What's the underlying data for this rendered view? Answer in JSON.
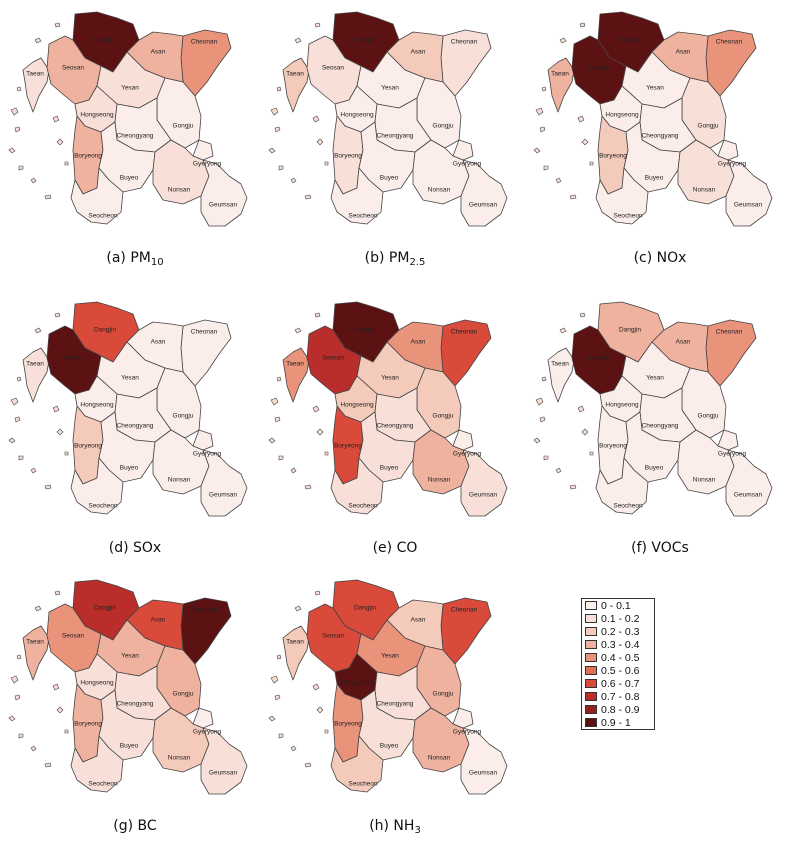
{
  "legend": {
    "bins": [
      {
        "label": "0 - 0.1",
        "color": "#fbeeea"
      },
      {
        "label": "0.1 - 0.2",
        "color": "#f8e0d8"
      },
      {
        "label": "0.2 - 0.3",
        "color": "#f4cabb"
      },
      {
        "label": "0.3 - 0.4",
        "color": "#efb29f"
      },
      {
        "label": "0.4 - 0.5",
        "color": "#e9937b"
      },
      {
        "label": "0.5 - 0.6",
        "color": "#e36e56"
      },
      {
        "label": "0.6 - 0.7",
        "color": "#d94a3a"
      },
      {
        "label": "0.7 - 0.8",
        "color": "#b92d2a"
      },
      {
        "label": "0.8 - 0.9",
        "color": "#92211f"
      },
      {
        "label": "0.9 - 1",
        "color": "#5c1113"
      }
    ]
  },
  "region_labels": {
    "Dangjin": "Dangjin",
    "Cheonan": "Cheonan",
    "Taean": "Taean",
    "Seosan": "Seosan",
    "Asan": "Asan",
    "Yesan": "Yesan",
    "Hongseong": "Hongseong",
    "Gongju": "Gongju",
    "Cheongyang": "Cheongyang",
    "Boryeong": "Boryeong",
    "Gyeryong": "Gyeryong",
    "Buyeo": "Buyeo",
    "Nonsan": "Nonsan",
    "Seocheon": "Seocheon",
    "Geumsan": "Geumsan"
  },
  "panels": [
    {
      "id": "a",
      "caption_prefix": "(a) PM",
      "caption_sub": "10",
      "values": {
        "Dangjin": 0.95,
        "Cheonan": 0.45,
        "Taean": 0.15,
        "Seosan": 0.35,
        "Asan": 0.35,
        "Yesan": 0.15,
        "Hongseong": 0.15,
        "Gongju": 0.05,
        "Cheongyang": 0.05,
        "Boryeong": 0.35,
        "Gyeryong": 0.05,
        "Buyeo": 0.05,
        "Nonsan": 0.15,
        "Seocheon": 0.05,
        "Geumsan": 0.05
      }
    },
    {
      "id": "b",
      "caption_prefix": "(b) PM",
      "caption_sub": "2.5",
      "values": {
        "Dangjin": 0.95,
        "Cheonan": 0.15,
        "Taean": 0.25,
        "Seosan": 0.15,
        "Asan": 0.25,
        "Yesan": 0.05,
        "Hongseong": 0.05,
        "Gongju": 0.05,
        "Cheongyang": 0.05,
        "Boryeong": 0.15,
        "Gyeryong": 0.05,
        "Buyeo": 0.05,
        "Nonsan": 0.05,
        "Seocheon": 0.05,
        "Geumsan": 0.05
      }
    },
    {
      "id": "c",
      "caption_prefix": "(c) NOx",
      "caption_sub": "",
      "values": {
        "Dangjin": 0.95,
        "Cheonan": 0.45,
        "Taean": 0.35,
        "Seosan": 0.95,
        "Asan": 0.35,
        "Yesan": 0.05,
        "Hongseong": 0.05,
        "Gongju": 0.15,
        "Cheongyang": 0.05,
        "Boryeong": 0.25,
        "Gyeryong": 0.05,
        "Buyeo": 0.05,
        "Nonsan": 0.15,
        "Seocheon": 0.05,
        "Geumsan": 0.05
      }
    },
    {
      "id": "d",
      "caption_prefix": "(d) SOx",
      "caption_sub": "",
      "values": {
        "Dangjin": 0.65,
        "Cheonan": 0.05,
        "Taean": 0.15,
        "Seosan": 0.95,
        "Asan": 0.05,
        "Yesan": 0.05,
        "Hongseong": 0.05,
        "Gongju": 0.05,
        "Cheongyang": 0.05,
        "Boryeong": 0.25,
        "Gyeryong": 0.05,
        "Buyeo": 0.05,
        "Nonsan": 0.05,
        "Seocheon": 0.05,
        "Geumsan": 0.05
      }
    },
    {
      "id": "e",
      "caption_prefix": "(e) CO",
      "caption_sub": "",
      "values": {
        "Dangjin": 0.95,
        "Cheonan": 0.65,
        "Taean": 0.45,
        "Seosan": 0.75,
        "Asan": 0.45,
        "Yesan": 0.25,
        "Hongseong": 0.25,
        "Gongju": 0.25,
        "Cheongyang": 0.15,
        "Boryeong": 0.65,
        "Gyeryong": 0.05,
        "Buyeo": 0.15,
        "Nonsan": 0.35,
        "Seocheon": 0.15,
        "Geumsan": 0.15
      }
    },
    {
      "id": "f",
      "caption_prefix": "(f) VOCs",
      "caption_sub": "",
      "values": {
        "Dangjin": 0.35,
        "Cheonan": 0.45,
        "Taean": 0.05,
        "Seosan": 0.95,
        "Asan": 0.35,
        "Yesan": 0.05,
        "Hongseong": 0.05,
        "Gongju": 0.05,
        "Cheongyang": 0.05,
        "Boryeong": 0.05,
        "Gyeryong": 0.05,
        "Buyeo": 0.05,
        "Nonsan": 0.05,
        "Seocheon": 0.05,
        "Geumsan": 0.05
      }
    },
    {
      "id": "g",
      "caption_prefix": "(g) BC",
      "caption_sub": "",
      "values": {
        "Dangjin": 0.75,
        "Cheonan": 0.95,
        "Taean": 0.35,
        "Seosan": 0.45,
        "Asan": 0.65,
        "Yesan": 0.35,
        "Hongseong": 0.15,
        "Gongju": 0.35,
        "Cheongyang": 0.15,
        "Boryeong": 0.35,
        "Gyeryong": 0.05,
        "Buyeo": 0.15,
        "Nonsan": 0.25,
        "Seocheon": 0.15,
        "Geumsan": 0.15
      }
    },
    {
      "id": "h",
      "caption_prefix": "(h) NH",
      "caption_sub": "3",
      "values": {
        "Dangjin": 0.65,
        "Cheonan": 0.65,
        "Taean": 0.25,
        "Seosan": 0.65,
        "Asan": 0.25,
        "Yesan": 0.45,
        "Hongseong": 0.95,
        "Gongju": 0.35,
        "Cheongyang": 0.15,
        "Boryeong": 0.45,
        "Gyeryong": 0.05,
        "Buyeo": 0.15,
        "Nonsan": 0.35,
        "Seocheon": 0.25,
        "Geumsan": 0.05
      }
    }
  ]
}
